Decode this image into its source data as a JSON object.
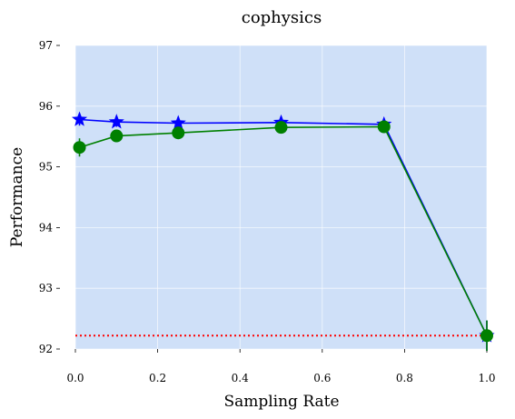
{
  "chart_data": {
    "type": "line",
    "title": "cophysics",
    "xlabel": "Sampling Rate",
    "ylabel": "Performance",
    "xlim": [
      0.0,
      1.0
    ],
    "ylim": [
      92.0,
      97.0
    ],
    "xticks": [
      "0.0",
      "0.2",
      "0.4",
      "0.6",
      "0.8",
      "1.0"
    ],
    "yticks": [
      "92",
      "93",
      "94",
      "95",
      "96",
      "97"
    ],
    "grid": true,
    "plot_background": "#cfe0f8",
    "series": [
      {
        "color": "#0000ff",
        "marker": "star",
        "x": [
          0.01,
          0.1,
          0.25,
          0.5,
          0.75,
          1.0
        ],
        "y": [
          95.78,
          95.74,
          95.72,
          95.73,
          95.7,
          92.22
        ],
        "err": [
          0.1,
          0.08,
          0.08,
          0.1,
          0.1,
          0.25
        ]
      },
      {
        "color": "#008000",
        "marker": "circle",
        "x": [
          0.01,
          0.1,
          0.25,
          0.5,
          0.75,
          1.0
        ],
        "y": [
          95.32,
          95.51,
          95.56,
          95.65,
          95.66,
          92.22
        ],
        "err": [
          0.15,
          0.06,
          0.06,
          0.1,
          0.05,
          0.25
        ]
      }
    ],
    "reference_line": {
      "y": 92.22,
      "color": "#ff0000",
      "style": "dotted"
    }
  }
}
